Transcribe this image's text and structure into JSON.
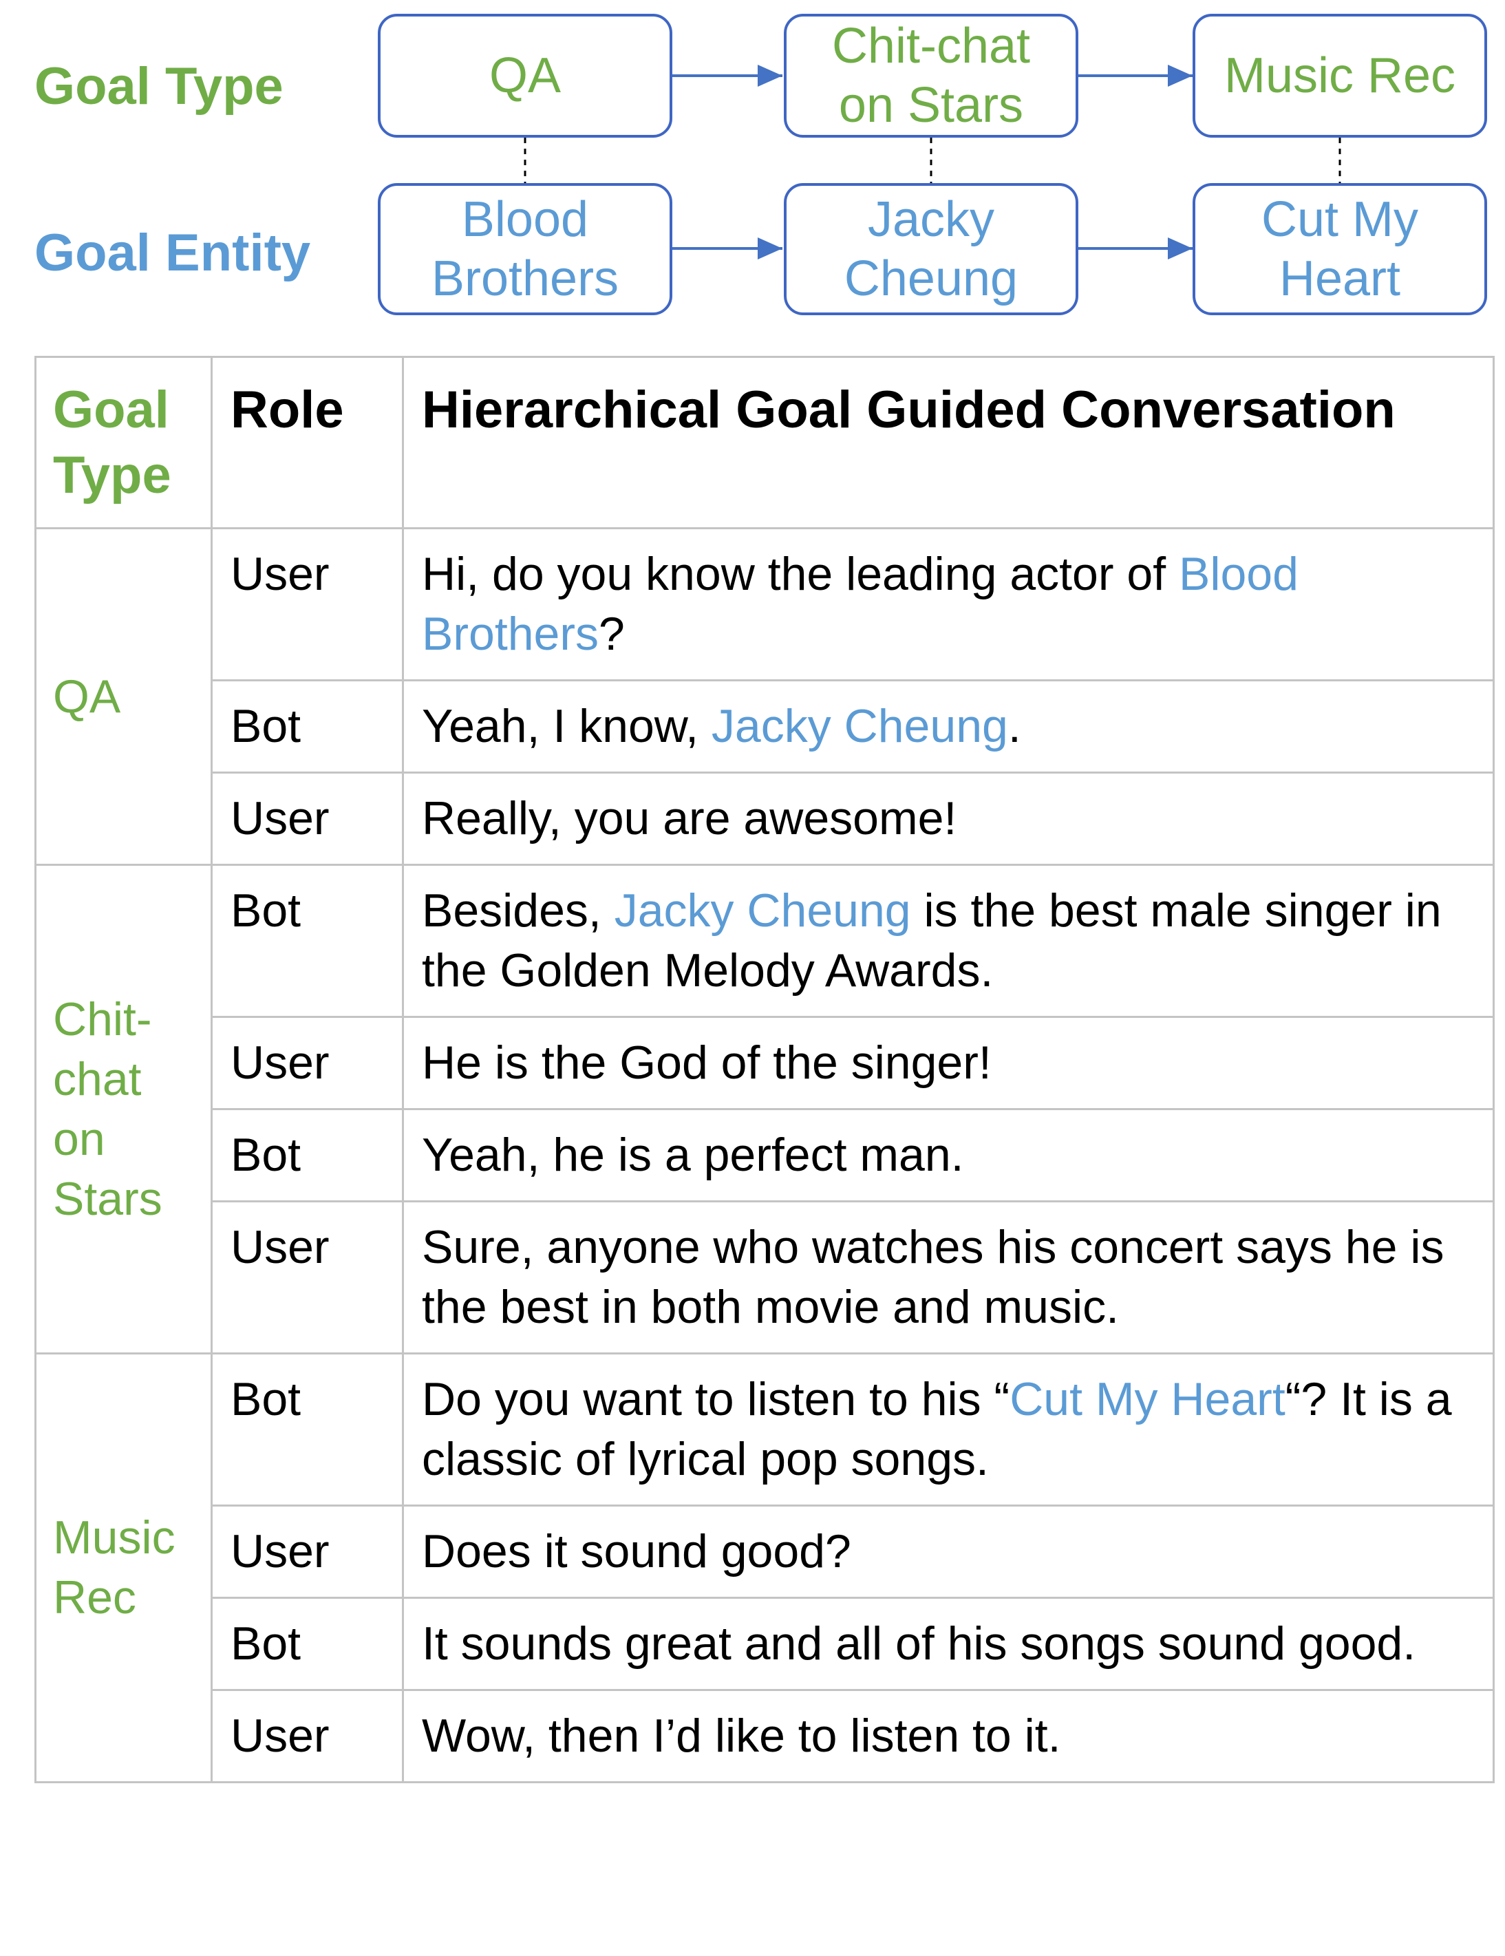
{
  "diagram": {
    "goal_type_label": "Goal Type",
    "goal_entity_label": "Goal Entity",
    "goal_types": [
      {
        "lines": [
          "QA"
        ]
      },
      {
        "lines": [
          "Chit-chat",
          "on Stars"
        ]
      },
      {
        "lines": [
          "Music Rec"
        ]
      }
    ],
    "goal_entities": [
      {
        "lines": [
          "Blood",
          "Brothers"
        ]
      },
      {
        "lines": [
          "Jacky",
          "Cheung"
        ]
      },
      {
        "lines": [
          "Cut My",
          "Heart"
        ]
      }
    ],
    "colors": {
      "goal_type": "#70ad47",
      "goal_entity": "#5b9bd5",
      "box_border": "#3f66c4",
      "arrow": "#4472c4",
      "table_border": "#c4c4c4"
    }
  },
  "table": {
    "headers": {
      "goal_type": [
        "Goal",
        "Type"
      ],
      "role": "Role",
      "conversation": "Hierarchical Goal Guided Conversation"
    },
    "groups": [
      {
        "goal_lines": [
          "QA"
        ],
        "turns": [
          {
            "role": "User",
            "parts": [
              {
                "text": "Hi, do you know the leading actor of "
              },
              {
                "text": "Blood Brothers",
                "entity": true
              },
              {
                "text": "?"
              }
            ]
          },
          {
            "role": "Bot",
            "parts": [
              {
                "text": "Yeah, I know, "
              },
              {
                "text": "Jacky Cheung",
                "entity": true
              },
              {
                "text": "."
              }
            ]
          },
          {
            "role": "User",
            "parts": [
              {
                "text": "Really, you are awesome!"
              }
            ]
          }
        ]
      },
      {
        "goal_lines": [
          "Chit-",
          "chat",
          "on",
          "Stars"
        ],
        "turns": [
          {
            "role": "Bot",
            "parts": [
              {
                "text": "Besides, "
              },
              {
                "text": "Jacky Cheung",
                "entity": true
              },
              {
                "text": " is the best male singer in the Golden Melody Awards."
              }
            ]
          },
          {
            "role": "User",
            "parts": [
              {
                "text": "He is the God of the singer!"
              }
            ]
          },
          {
            "role": "Bot",
            "parts": [
              {
                "text": "Yeah, he is a perfect man."
              }
            ]
          },
          {
            "role": "User",
            "parts": [
              {
                "text": "Sure, anyone who watches his concert says he is the best in both movie and music."
              }
            ]
          }
        ]
      },
      {
        "goal_lines": [
          "Music",
          "Rec"
        ],
        "turns": [
          {
            "role": "Bot",
            "parts": [
              {
                "text": "Do you want to listen to his “"
              },
              {
                "text": "Cut My Heart",
                "entity": true
              },
              {
                "text": "“? It is a classic of lyrical pop songs."
              }
            ]
          },
          {
            "role": "User",
            "parts": [
              {
                "text": "Does it sound good?"
              }
            ]
          },
          {
            "role": "Bot",
            "parts": [
              {
                "text": "It sounds great and all of his songs sound good."
              }
            ]
          },
          {
            "role": "User",
            "parts": [
              {
                "text": "Wow, then I’d like to listen to it."
              }
            ]
          }
        ]
      }
    ]
  }
}
